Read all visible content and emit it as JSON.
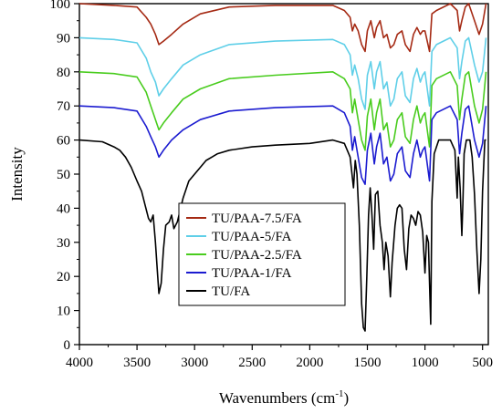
{
  "chart_data": {
    "type": "line",
    "xlabel": "Wavenumbers (cm",
    "xlabel_sup": "-1",
    "xlabel_tail": ")",
    "ylabel": "Intensity",
    "xlim": [
      4000,
      450
    ],
    "x_reversed": true,
    "ylim": [
      0,
      100
    ],
    "grid": false,
    "legend_position": "center-left",
    "x_ticks": [
      4000,
      3500,
      3000,
      2500,
      2000,
      1500,
      1000,
      500
    ],
    "x_tick_labels": [
      "4000",
      "3500",
      "3000",
      "2500",
      "2000",
      "1500",
      "1000",
      "500"
    ],
    "y_ticks": [
      0,
      10,
      20,
      30,
      40,
      50,
      60,
      70,
      80,
      90,
      100
    ],
    "y_tick_labels": [
      "0",
      "10",
      "20",
      "30",
      "40",
      "50",
      "60",
      "70",
      "80",
      "90",
      "100"
    ],
    "series": [
      {
        "name": "TU/PAA-7.5/FA",
        "color": "#a52a14",
        "points": [
          [
            4000,
            100
          ],
          [
            3700,
            99.5
          ],
          [
            3500,
            99
          ],
          [
            3420,
            96
          ],
          [
            3380,
            94
          ],
          [
            3340,
            91
          ],
          [
            3310,
            88
          ],
          [
            3270,
            89
          ],
          [
            3200,
            91
          ],
          [
            3100,
            94
          ],
          [
            2950,
            97
          ],
          [
            2700,
            99
          ],
          [
            2300,
            99.5
          ],
          [
            1800,
            99.5
          ],
          [
            1700,
            98
          ],
          [
            1650,
            96
          ],
          [
            1630,
            92
          ],
          [
            1610,
            94
          ],
          [
            1580,
            92
          ],
          [
            1550,
            88
          ],
          [
            1520,
            86
          ],
          [
            1500,
            92
          ],
          [
            1470,
            95
          ],
          [
            1440,
            90
          ],
          [
            1420,
            93
          ],
          [
            1390,
            95
          ],
          [
            1360,
            90
          ],
          [
            1330,
            91
          ],
          [
            1300,
            87
          ],
          [
            1270,
            88
          ],
          [
            1240,
            91
          ],
          [
            1200,
            92
          ],
          [
            1170,
            88
          ],
          [
            1130,
            86
          ],
          [
            1100,
            91
          ],
          [
            1070,
            93
          ],
          [
            1040,
            91
          ],
          [
            1020,
            92
          ],
          [
            1000,
            92
          ],
          [
            960,
            86
          ],
          [
            940,
            97
          ],
          [
            900,
            98
          ],
          [
            780,
            100
          ],
          [
            720,
            98
          ],
          [
            700,
            92
          ],
          [
            680,
            95
          ],
          [
            650,
            99
          ],
          [
            620,
            100
          ],
          [
            570,
            95
          ],
          [
            530,
            91
          ],
          [
            500,
            94
          ],
          [
            470,
            100
          ]
        ]
      },
      {
        "name": "TU/PAA-5/FA",
        "color": "#5fcfe8",
        "points": [
          [
            4000,
            90
          ],
          [
            3700,
            89.5
          ],
          [
            3500,
            88.5
          ],
          [
            3420,
            84
          ],
          [
            3380,
            80
          ],
          [
            3340,
            77
          ],
          [
            3310,
            73
          ],
          [
            3270,
            75
          ],
          [
            3200,
            78
          ],
          [
            3100,
            82
          ],
          [
            2950,
            85
          ],
          [
            2700,
            88
          ],
          [
            2300,
            89
          ],
          [
            1800,
            89.5
          ],
          [
            1700,
            88
          ],
          [
            1650,
            85
          ],
          [
            1630,
            79
          ],
          [
            1610,
            82
          ],
          [
            1580,
            78
          ],
          [
            1550,
            72
          ],
          [
            1520,
            69
          ],
          [
            1500,
            79
          ],
          [
            1470,
            83
          ],
          [
            1440,
            75
          ],
          [
            1420,
            80
          ],
          [
            1390,
            83
          ],
          [
            1360,
            75
          ],
          [
            1330,
            77
          ],
          [
            1300,
            70
          ],
          [
            1270,
            72
          ],
          [
            1240,
            78
          ],
          [
            1200,
            80
          ],
          [
            1170,
            73
          ],
          [
            1130,
            71
          ],
          [
            1100,
            78
          ],
          [
            1070,
            81
          ],
          [
            1040,
            77
          ],
          [
            1020,
            79
          ],
          [
            1000,
            80
          ],
          [
            960,
            70
          ],
          [
            940,
            86
          ],
          [
            900,
            88
          ],
          [
            780,
            90
          ],
          [
            720,
            87
          ],
          [
            700,
            78
          ],
          [
            680,
            83
          ],
          [
            650,
            89
          ],
          [
            620,
            90
          ],
          [
            570,
            82
          ],
          [
            530,
            77
          ],
          [
            500,
            80
          ],
          [
            470,
            90
          ]
        ]
      },
      {
        "name": "TU/PAA-2.5/FA",
        "color": "#49cc1e",
        "points": [
          [
            4000,
            80
          ],
          [
            3700,
            79.5
          ],
          [
            3500,
            78.5
          ],
          [
            3420,
            74
          ],
          [
            3380,
            70
          ],
          [
            3340,
            66
          ],
          [
            3310,
            63
          ],
          [
            3270,
            65
          ],
          [
            3200,
            68
          ],
          [
            3100,
            72
          ],
          [
            2950,
            75
          ],
          [
            2700,
            78
          ],
          [
            2300,
            79
          ],
          [
            1800,
            80
          ],
          [
            1700,
            78
          ],
          [
            1650,
            75
          ],
          [
            1630,
            68
          ],
          [
            1610,
            72
          ],
          [
            1580,
            66
          ],
          [
            1550,
            60
          ],
          [
            1520,
            57
          ],
          [
            1500,
            67
          ],
          [
            1470,
            72
          ],
          [
            1440,
            63
          ],
          [
            1420,
            68
          ],
          [
            1390,
            72
          ],
          [
            1360,
            63
          ],
          [
            1330,
            65
          ],
          [
            1300,
            58
          ],
          [
            1270,
            60
          ],
          [
            1240,
            66
          ],
          [
            1200,
            68
          ],
          [
            1170,
            61
          ],
          [
            1130,
            59
          ],
          [
            1100,
            66
          ],
          [
            1070,
            70
          ],
          [
            1040,
            65
          ],
          [
            1020,
            67
          ],
          [
            1000,
            68
          ],
          [
            960,
            58
          ],
          [
            940,
            76
          ],
          [
            900,
            78
          ],
          [
            780,
            80
          ],
          [
            720,
            76
          ],
          [
            700,
            66
          ],
          [
            680,
            72
          ],
          [
            650,
            79
          ],
          [
            620,
            80
          ],
          [
            570,
            70
          ],
          [
            530,
            65
          ],
          [
            500,
            69
          ],
          [
            470,
            80
          ]
        ]
      },
      {
        "name": "TU/PAA-1/FA",
        "color": "#1b1bd0",
        "points": [
          [
            4000,
            70
          ],
          [
            3700,
            69.5
          ],
          [
            3500,
            68.5
          ],
          [
            3420,
            64
          ],
          [
            3380,
            61
          ],
          [
            3340,
            58
          ],
          [
            3310,
            55
          ],
          [
            3270,
            57
          ],
          [
            3200,
            60
          ],
          [
            3100,
            63
          ],
          [
            2950,
            66
          ],
          [
            2700,
            68.5
          ],
          [
            2300,
            69.5
          ],
          [
            1800,
            70
          ],
          [
            1700,
            68
          ],
          [
            1650,
            64
          ],
          [
            1630,
            57
          ],
          [
            1610,
            61
          ],
          [
            1580,
            55
          ],
          [
            1550,
            49
          ],
          [
            1520,
            47
          ],
          [
            1500,
            57
          ],
          [
            1470,
            62
          ],
          [
            1440,
            53
          ],
          [
            1420,
            58
          ],
          [
            1390,
            62
          ],
          [
            1360,
            53
          ],
          [
            1330,
            55
          ],
          [
            1300,
            48
          ],
          [
            1270,
            50
          ],
          [
            1240,
            56
          ],
          [
            1200,
            58
          ],
          [
            1170,
            51
          ],
          [
            1130,
            49
          ],
          [
            1100,
            56
          ],
          [
            1070,
            60
          ],
          [
            1040,
            55
          ],
          [
            1020,
            57
          ],
          [
            1000,
            58
          ],
          [
            960,
            48
          ],
          [
            940,
            66
          ],
          [
            900,
            68
          ],
          [
            780,
            70
          ],
          [
            720,
            66
          ],
          [
            700,
            56
          ],
          [
            680,
            62
          ],
          [
            650,
            69
          ],
          [
            620,
            70
          ],
          [
            570,
            60
          ],
          [
            530,
            55
          ],
          [
            500,
            59
          ],
          [
            470,
            70
          ]
        ]
      },
      {
        "name": "TU/FA",
        "color": "#000000",
        "points": [
          [
            4000,
            60
          ],
          [
            3800,
            59.5
          ],
          [
            3700,
            58
          ],
          [
            3650,
            57
          ],
          [
            3600,
            55
          ],
          [
            3550,
            52
          ],
          [
            3500,
            48
          ],
          [
            3460,
            45
          ],
          [
            3430,
            41
          ],
          [
            3400,
            37
          ],
          [
            3380,
            36
          ],
          [
            3360,
            38
          ],
          [
            3340,
            30
          ],
          [
            3320,
            20
          ],
          [
            3310,
            15
          ],
          [
            3290,
            18
          ],
          [
            3270,
            28
          ],
          [
            3250,
            35
          ],
          [
            3220,
            36
          ],
          [
            3200,
            38
          ],
          [
            3180,
            34
          ],
          [
            3150,
            36
          ],
          [
            3100,
            43
          ],
          [
            3050,
            48
          ],
          [
            3000,
            50
          ],
          [
            2950,
            52
          ],
          [
            2900,
            54
          ],
          [
            2850,
            55
          ],
          [
            2800,
            56
          ],
          [
            2700,
            57
          ],
          [
            2500,
            58
          ],
          [
            2300,
            58.5
          ],
          [
            2000,
            59
          ],
          [
            1800,
            60
          ],
          [
            1700,
            59
          ],
          [
            1650,
            55
          ],
          [
            1620,
            46
          ],
          [
            1605,
            54
          ],
          [
            1590,
            50
          ],
          [
            1570,
            35
          ],
          [
            1550,
            12
          ],
          [
            1535,
            5
          ],
          [
            1520,
            4
          ],
          [
            1505,
            20
          ],
          [
            1490,
            38
          ],
          [
            1475,
            46
          ],
          [
            1460,
            38
          ],
          [
            1445,
            28
          ],
          [
            1430,
            44
          ],
          [
            1410,
            45
          ],
          [
            1390,
            35
          ],
          [
            1370,
            30
          ],
          [
            1355,
            22
          ],
          [
            1340,
            30
          ],
          [
            1320,
            26
          ],
          [
            1300,
            14
          ],
          [
            1285,
            24
          ],
          [
            1260,
            35
          ],
          [
            1240,
            40
          ],
          [
            1220,
            41
          ],
          [
            1200,
            40
          ],
          [
            1180,
            28
          ],
          [
            1160,
            22
          ],
          [
            1140,
            34
          ],
          [
            1120,
            38
          ],
          [
            1100,
            37
          ],
          [
            1080,
            35
          ],
          [
            1060,
            39
          ],
          [
            1040,
            38
          ],
          [
            1020,
            33
          ],
          [
            1000,
            21
          ],
          [
            985,
            32
          ],
          [
            970,
            30
          ],
          [
            960,
            18
          ],
          [
            950,
            6
          ],
          [
            940,
            42
          ],
          [
            920,
            56
          ],
          [
            880,
            60
          ],
          [
            780,
            60
          ],
          [
            740,
            57
          ],
          [
            720,
            43
          ],
          [
            710,
            55
          ],
          [
            695,
            46
          ],
          [
            680,
            32
          ],
          [
            670,
            42
          ],
          [
            660,
            56
          ],
          [
            640,
            60
          ],
          [
            610,
            60
          ],
          [
            590,
            55
          ],
          [
            570,
            44
          ],
          [
            550,
            28
          ],
          [
            530,
            15
          ],
          [
            515,
            25
          ],
          [
            500,
            45
          ],
          [
            480,
            60
          ],
          [
            470,
            60
          ]
        ]
      }
    ]
  }
}
